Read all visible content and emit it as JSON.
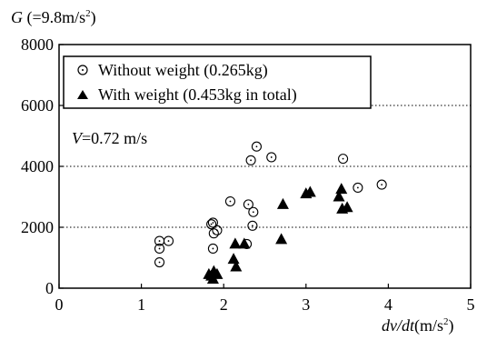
{
  "chart_data": {
    "type": "scatter",
    "y_axis_title": {
      "prefix": "G",
      "unit_open": " (=9.8m/s",
      "unit_sup": "2",
      "unit_close": ")"
    },
    "x_axis_title": {
      "prefix": "dv/dt",
      "unit_open": "(m/s",
      "unit_sup": "2",
      "unit_close": ")"
    },
    "xlim": [
      0,
      5
    ],
    "ylim": [
      0,
      8000
    ],
    "x_ticks": [
      0,
      1,
      2,
      3,
      4,
      5
    ],
    "x_tick_labels": [
      "0",
      "1",
      "2",
      "3",
      "4",
      "5"
    ],
    "y_ticks": [
      0,
      2000,
      4000,
      6000,
      8000
    ],
    "y_tick_labels": [
      "0",
      "2000",
      "4000",
      "6000",
      "8000"
    ],
    "grid": "horizontal dotted",
    "legend_position": "top-left",
    "annotation": {
      "prefix": "V",
      "rest": "=0.72 m/s"
    },
    "colors": {
      "marker": "#000000",
      "axis": "#000000",
      "grid": "#000000"
    },
    "series": [
      {
        "name": "Without weight (0.265kg)",
        "marker": "open-circle",
        "points": [
          [
            1.22,
            1550
          ],
          [
            1.22,
            1300
          ],
          [
            1.22,
            850
          ],
          [
            1.33,
            1550
          ],
          [
            1.85,
            2100
          ],
          [
            1.87,
            2150
          ],
          [
            1.88,
            1800
          ],
          [
            1.87,
            1300
          ],
          [
            1.92,
            1900
          ],
          [
            2.08,
            2850
          ],
          [
            2.28,
            1450
          ],
          [
            2.3,
            2750
          ],
          [
            2.33,
            4200
          ],
          [
            2.35,
            2050
          ],
          [
            2.36,
            2500
          ],
          [
            2.4,
            4650
          ],
          [
            2.58,
            4300
          ],
          [
            3.45,
            4250
          ],
          [
            3.63,
            3300
          ],
          [
            3.92,
            3400
          ]
        ]
      },
      {
        "name": "With weight (0.453kg in total)",
        "marker": "filled-triangle",
        "points": [
          [
            1.82,
            450
          ],
          [
            1.85,
            400
          ],
          [
            1.87,
            300
          ],
          [
            1.88,
            550
          ],
          [
            1.92,
            450
          ],
          [
            2.12,
            950
          ],
          [
            2.14,
            1450
          ],
          [
            2.15,
            700
          ],
          [
            2.25,
            1450
          ],
          [
            2.7,
            1600
          ],
          [
            2.72,
            2750
          ],
          [
            3.0,
            3100
          ],
          [
            3.05,
            3150
          ],
          [
            3.4,
            3000
          ],
          [
            3.43,
            3250
          ],
          [
            3.44,
            2600
          ],
          [
            3.5,
            2650
          ]
        ]
      }
    ]
  }
}
